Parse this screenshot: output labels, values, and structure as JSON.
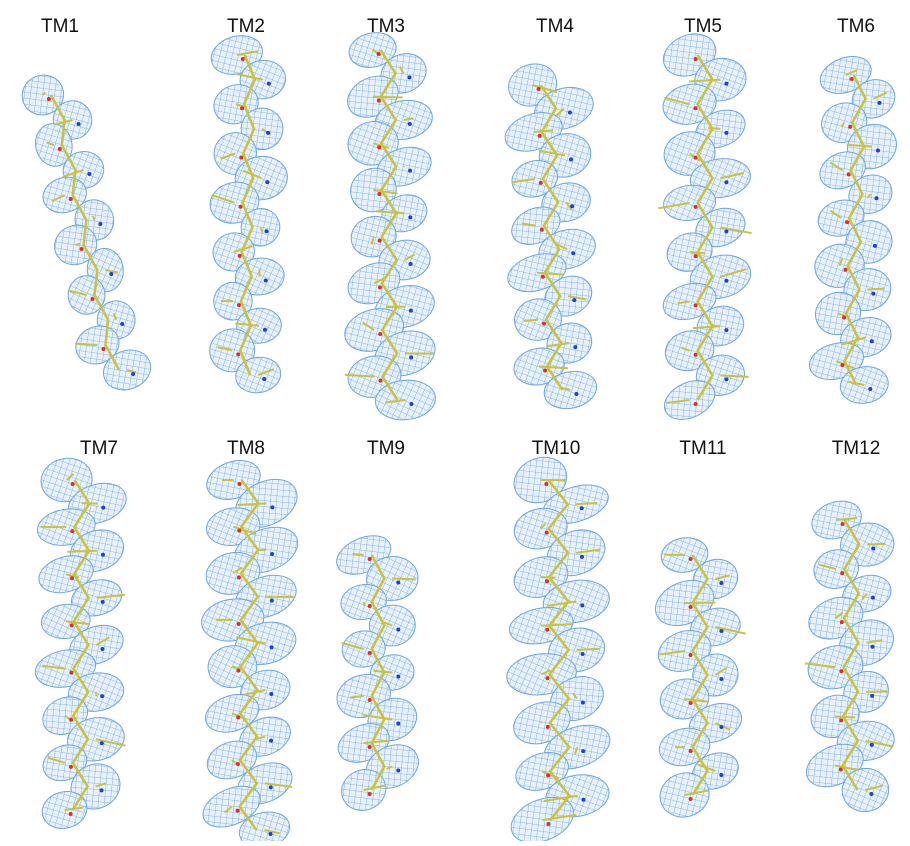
{
  "panels": [
    {
      "label": "TM1"
    },
    {
      "label": "TM2"
    },
    {
      "label": "TM3"
    },
    {
      "label": "TM4"
    },
    {
      "label": "TM5"
    },
    {
      "label": "TM6"
    },
    {
      "label": "TM7"
    },
    {
      "label": "TM8"
    },
    {
      "label": "TM9"
    },
    {
      "label": "TM10"
    },
    {
      "label": "TM11"
    },
    {
      "label": "TM12"
    }
  ]
}
